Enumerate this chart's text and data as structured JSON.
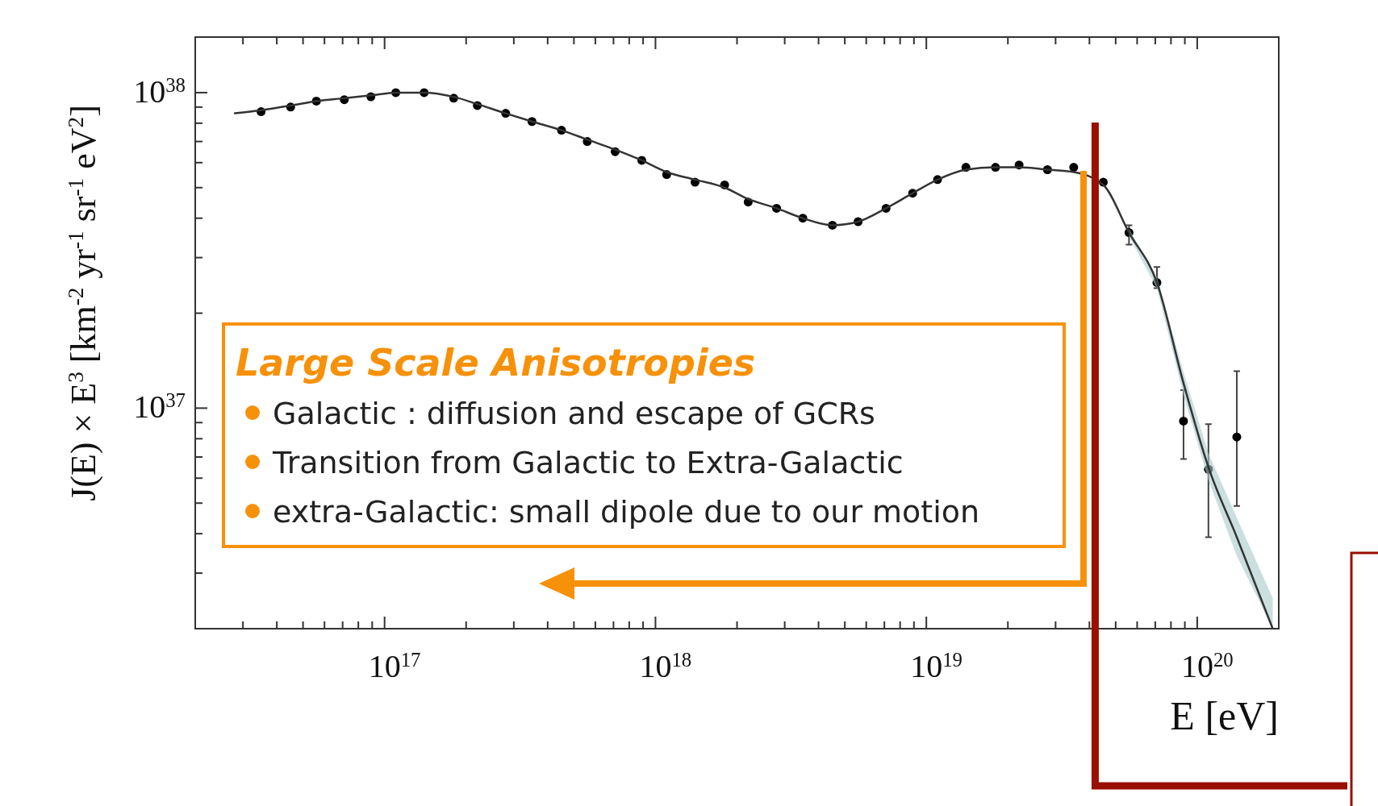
{
  "chart_data": {
    "type": "scatter",
    "xlabel": "E [eV]",
    "ylabel": "J(E) × E$^{3}$ [km$^{-2}$ yr$^{-1}$ sr$^{-1}$ eV$^{2}$]",
    "log": "xy",
    "grid": false,
    "xlim": [
      2e+16,
      2e+20
    ],
    "ylim": [
      2e+36,
      1.5e+38
    ],
    "xticks": [
      {
        "value": 3e+16,
        "label": null
      },
      {
        "value": 4e+16,
        "label": null
      },
      {
        "value": 5e+16,
        "label": null
      },
      {
        "value": 6e+16,
        "label": null
      },
      {
        "value": 7e+16,
        "label": null
      },
      {
        "value": 8e+16,
        "label": null
      },
      {
        "value": 9e+16,
        "label": null
      },
      {
        "value": 1e+17,
        "label": "10$^{17}$"
      },
      {
        "value": 2e+17,
        "label": null
      },
      {
        "value": 3e+17,
        "label": null
      },
      {
        "value": 4e+17,
        "label": null
      },
      {
        "value": 5e+17,
        "label": null
      },
      {
        "value": 6e+17,
        "label": null
      },
      {
        "value": 7e+17,
        "label": null
      },
      {
        "value": 8e+17,
        "label": null
      },
      {
        "value": 9e+17,
        "label": null
      },
      {
        "value": 1e+18,
        "label": "10$^{18}$"
      },
      {
        "value": 2e+18,
        "label": null
      },
      {
        "value": 3e+18,
        "label": null
      },
      {
        "value": 4e+18,
        "label": null
      },
      {
        "value": 5e+18,
        "label": null
      },
      {
        "value": 6e+18,
        "label": null
      },
      {
        "value": 7e+18,
        "label": null
      },
      {
        "value": 8e+18,
        "label": null
      },
      {
        "value": 9e+18,
        "label": null
      },
      {
        "value": 1e+19,
        "label": "10$^{19}$"
      },
      {
        "value": 2e+19,
        "label": null
      },
      {
        "value": 3e+19,
        "label": null
      },
      {
        "value": 4e+19,
        "label": null
      },
      {
        "value": 5e+19,
        "label": null
      },
      {
        "value": 6e+19,
        "label": null
      },
      {
        "value": 7e+19,
        "label": null
      },
      {
        "value": 8e+19,
        "label": null
      },
      {
        "value": 9e+19,
        "label": null
      },
      {
        "value": 1e+20,
        "label": "10$^{20}$"
      }
    ],
    "yticks": [
      {
        "value": 3e+36,
        "label": null
      },
      {
        "value": 4e+36,
        "label": null
      },
      {
        "value": 5e+36,
        "label": null
      },
      {
        "value": 6e+36,
        "label": null
      },
      {
        "value": 7e+36,
        "label": null
      },
      {
        "value": 8e+36,
        "label": null
      },
      {
        "value": 9e+36,
        "label": null
      },
      {
        "value": 1e+37,
        "label": "10$^{37}$"
      },
      {
        "value": 2e+37,
        "label": null
      },
      {
        "value": 3e+37,
        "label": null
      },
      {
        "value": 4e+37,
        "label": null
      },
      {
        "value": 5e+37,
        "label": null
      },
      {
        "value": 6e+37,
        "label": null
      },
      {
        "value": 7e+37,
        "label": null
      },
      {
        "value": 8e+37,
        "label": null
      },
      {
        "value": 9e+37,
        "label": null
      },
      {
        "value": 1e+38,
        "label": "10$^{38}$"
      }
    ],
    "series": [
      {
        "color": "#000000",
        "marker": "circle",
        "x": [
          3.5e+16,
          4.5e+16,
          5.6e+16,
          7.1e+16,
          8.9e+16,
          1.1e+17,
          1.4e+17,
          1.8e+17,
          2.2e+17,
          2.8e+17,
          3.5e+17,
          4.5e+17,
          5.6e+17,
          7.1e+17,
          8.9e+17,
          1.1e+18,
          1.4e+18,
          1.8e+18,
          2.2e+18,
          2.8e+18,
          3.5e+18,
          4.5e+18,
          5.6e+18,
          7.1e+18,
          8.9e+18,
          1.1e+19,
          1.4e+19,
          1.8e+19,
          2.2e+19,
          2.8e+19,
          3.5e+19,
          4.5e+19,
          5.6e+19,
          7.1e+19,
          8.9e+19,
          1.1e+20,
          1.4e+20
        ],
        "values": [
          8.7e+37,
          9e+37,
          9.4e+37,
          9.5e+37,
          9.7e+37,
          1e+38,
          1e+38,
          9.6e+37,
          9.1e+37,
          8.6e+37,
          8.1e+37,
          7.6e+37,
          7e+37,
          6.5e+37,
          6.1e+37,
          5.5e+37,
          5.2e+37,
          5.1e+37,
          4.5e+37,
          4.3e+37,
          4e+37,
          3.8e+37,
          3.9e+37,
          4.3e+37,
          4.8e+37,
          5.3e+37,
          5.8e+37,
          5.8e+37,
          5.9e+37,
          5.7e+37,
          5.8e+37,
          5.2e+37,
          3.6e+37,
          2.5e+37,
          9.1e+36,
          6.4e+36,
          8.1e+36
        ],
        "errors": [
          null,
          null,
          null,
          null,
          null,
          null,
          null,
          null,
          null,
          null,
          null,
          null,
          null,
          null,
          null,
          null,
          null,
          null,
          null,
          null,
          null,
          null,
          null,
          null,
          null,
          null,
          null,
          null,
          null,
          null,
          null,
          null,
          [
            3.3e+37,
            3.8e+37
          ],
          [
            2.4e+37,
            2.8e+37
          ],
          [
            6.9e+36,
            1.14e+37
          ],
          [
            3.9e+36,
            8.9e+36
          ],
          [
            4.9e+36,
            1.31e+37
          ]
        ]
      },
      {
        "type": "line",
        "color": "#333333",
        "marker": "none",
        "x": [
          2.8e+16,
          3.5e+16,
          4.5e+16,
          5.6e+16,
          7.1e+16,
          8.9e+16,
          1.1e+17,
          1.4e+17,
          1.8e+17,
          2.2e+17,
          2.8e+17,
          3.5e+17,
          4.5e+17,
          5.6e+17,
          7.1e+17,
          8.9e+17,
          1.1e+18,
          1.4e+18,
          1.8e+18,
          2.2e+18,
          2.8e+18,
          3.5e+18,
          4.5e+18,
          5.6e+18,
          7.1e+18,
          8.9e+18,
          1.1e+19,
          1.4e+19,
          1.8e+19,
          2.2e+19,
          2.8e+19,
          3.5e+19,
          4.5e+19,
          5.6e+19,
          7.1e+19,
          8.9e+19,
          1.1e+20,
          1.4e+20,
          1.9e+20
        ],
        "values": [
          8.6e+37,
          8.8e+37,
          9.1e+37,
          9.4e+37,
          9.6e+37,
          9.8e+37,
          1e+38,
          1e+38,
          9.7e+37,
          9.2e+37,
          8.6e+37,
          8.1e+37,
          7.6e+37,
          7.1e+37,
          6.6e+37,
          6.1e+37,
          5.6e+37,
          5.3e+37,
          5e+37,
          4.6e+37,
          4.3e+37,
          4e+37,
          3.8e+37,
          3.9e+37,
          4.3e+37,
          4.8e+37,
          5.3e+37,
          5.7e+37,
          5.8e+37,
          5.8e+37,
          5.7e+37,
          5.6e+37,
          5.1e+37,
          3.6e+37,
          2.5e+37,
          1.2e+37,
          6.5e+36,
          3.9e+36,
          2e+36
        ],
        "lower": [
          null,
          null,
          null,
          null,
          null,
          null,
          null,
          null,
          null,
          null,
          null,
          null,
          null,
          null,
          null,
          null,
          null,
          null,
          null,
          null,
          null,
          null,
          null,
          null,
          null,
          null,
          null,
          null,
          null,
          null,
          null,
          null,
          null,
          3.5e+37,
          2.4e+37,
          1.1e+37,
          5.9e+36,
          3.4e+36,
          2e+36
        ],
        "upper": [
          null,
          null,
          null,
          null,
          null,
          null,
          null,
          null,
          null,
          null,
          null,
          null,
          null,
          null,
          null,
          null,
          null,
          null,
          null,
          null,
          null,
          null,
          null,
          null,
          null,
          null,
          null,
          null,
          null,
          null,
          null,
          null,
          null,
          3.7e+37,
          2.6e+37,
          1.3e+37,
          7.2e+36,
          4.5e+36,
          2.5e+36
        ]
      }
    ],
    "ref_lines": [
      {
        "axis": "x",
        "value": 4.2e+19,
        "color": "#9a0f00"
      }
    ],
    "annotations": [
      "Large Scale Anisotropies",
      "Galactic : diffusion and escape of GCRs",
      "Transition from Galactic to Extra-Galactic",
      "extra-Galactic: small dipole due to our motion"
    ]
  }
}
